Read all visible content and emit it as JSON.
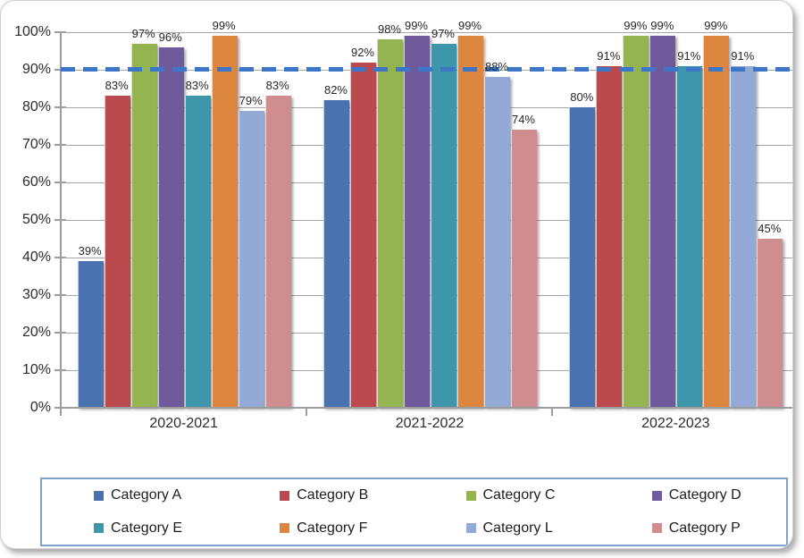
{
  "chart_data": {
    "type": "bar",
    "title": "",
    "xlabel": "",
    "ylabel": "",
    "categories": [
      "2020-2021",
      "2021-2022",
      "2022-2023"
    ],
    "series": [
      {
        "name": "Category A",
        "color": "#4a72b0",
        "values": [
          39,
          82,
          80
        ],
        "labels": [
          "39%",
          "82%",
          "80%"
        ]
      },
      {
        "name": "Category B",
        "color": "#ba4a4d",
        "values": [
          83,
          92,
          91
        ],
        "labels": [
          "83%",
          "92%",
          "91%"
        ]
      },
      {
        "name": "Category C",
        "color": "#94b351",
        "values": [
          97,
          98,
          99
        ],
        "labels": [
          "97%",
          "98%",
          "99%"
        ]
      },
      {
        "name": "Category D",
        "color": "#6f5a9b",
        "values": [
          96,
          99,
          99
        ],
        "labels": [
          "96%",
          "99%",
          "99%"
        ]
      },
      {
        "name": "Category E",
        "color": "#3e96ab",
        "values": [
          83,
          97,
          91
        ],
        "labels": [
          "83%",
          "97%",
          "91%"
        ]
      },
      {
        "name": "Category F",
        "color": "#dd8640",
        "values": [
          99,
          99,
          99
        ],
        "labels": [
          "99%",
          "99%",
          "99%"
        ]
      },
      {
        "name": "Category L",
        "color": "#93a9d6",
        "values": [
          79,
          88,
          91
        ],
        "labels": [
          "79%",
          "88%",
          "91%"
        ]
      },
      {
        "name": "Category P",
        "color": "#d08d8f",
        "values": [
          83,
          74,
          45
        ],
        "labels": [
          "83%",
          "74%",
          "45%"
        ]
      }
    ],
    "y_ticks": [
      "100%",
      "90%",
      "80%",
      "70%",
      "60%",
      "50%",
      "40%",
      "30%",
      "20%",
      "10%",
      "0%"
    ],
    "ylim": [
      0,
      100
    ],
    "grid": true,
    "reference_line": {
      "value": 90,
      "color": "#3b76c8",
      "style": "dashed"
    },
    "legend_position": "bottom",
    "legend_border_color": "#7da2cb",
    "data_label_format": "{value}%"
  }
}
